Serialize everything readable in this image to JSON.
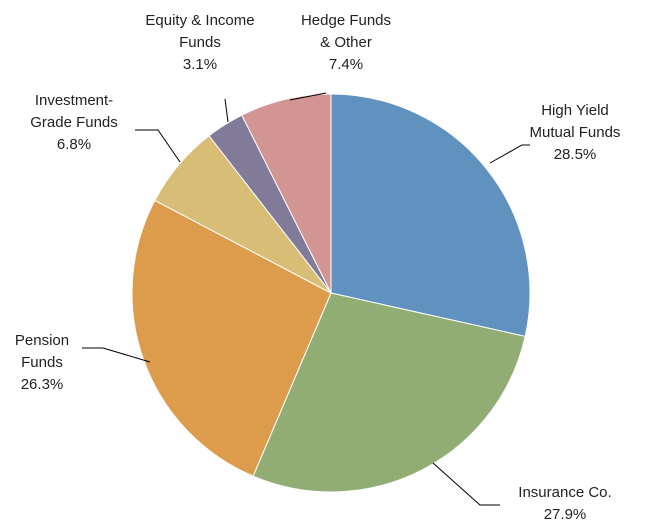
{
  "chart_data": {
    "type": "pie",
    "categories": [
      "High Yield Mutual Funds",
      "Insurance Co.",
      "Pension Funds",
      "Investment-Grade Funds",
      "Equity & Income Funds",
      "Hedge Funds & Other"
    ],
    "values": [
      28.5,
      27.9,
      26.3,
      6.8,
      3.1,
      7.4
    ],
    "value_labels": [
      "28.5%",
      "27.9%",
      "26.3%",
      "6.8%",
      "3.1%",
      "7.4%"
    ],
    "colors": [
      "#6092c0",
      "#92ad74",
      "#dd9c4c",
      "#d8bd76",
      "#827a99",
      "#d39593"
    ]
  }
}
